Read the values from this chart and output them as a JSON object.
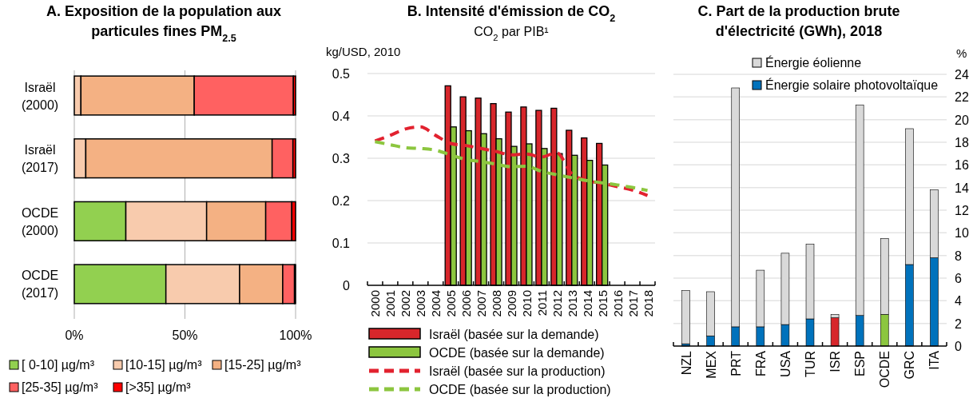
{
  "chart_data": [
    {
      "type": "bar",
      "title": "A. Exposition de la population aux particules fines PM$_{2.5}$",
      "orientation": "horizontal",
      "stacked": true,
      "categories": [
        "Israël (2000)",
        "Israël (2017)",
        "OCDE (2000)",
        "OCDE (2017)"
      ],
      "xlim": [
        0,
        100
      ],
      "xticks": [
        {
          "value": 0,
          "label": "0%"
        },
        {
          "value": 50,
          "label": "50%"
        },
        {
          "value": 100,
          "label": "100%"
        }
      ],
      "grid": "x",
      "legend": "bottom",
      "series": [
        {
          "name": "[ 0-10] µg/m³",
          "color": "#92d050",
          "values": [
            0,
            0,
            23.3,
            41.4
          ]
        },
        {
          "name": "[10-15] µg/m³",
          "color": "#f8cbad",
          "values": [
            3.0,
            5.2,
            36.5,
            33.3
          ]
        },
        {
          "name": "[15-25] µg/m³",
          "color": "#f4b183",
          "values": [
            51.2,
            84.2,
            26.7,
            19.5
          ]
        },
        {
          "name": "[25-35] µg/m³",
          "color": "#ff6161",
          "values": [
            44.8,
            9.4,
            11.8,
            5.3
          ]
        },
        {
          "name": "[>35] µg/m³",
          "color": "#ff0000",
          "values": [
            1.0,
            1.2,
            1.7,
            0.5
          ]
        }
      ]
    },
    {
      "type": "bar",
      "title": "B. Intensité d'émission de CO$_{2}$",
      "subtitle": "CO$_{2}$ par PIB¹",
      "ylabel": "kg/USD, 2010",
      "categories": [
        "2000",
        "2001",
        "2002",
        "2003",
        "2004",
        "2005",
        "2006",
        "2007",
        "2008",
        "2009",
        "2010",
        "2011",
        "2012",
        "2013",
        "2014",
        "2015",
        "2016",
        "2017",
        "2018"
      ],
      "ylim": [
        0,
        0.5
      ],
      "yticks": [
        {
          "value": 0,
          "label": "0"
        },
        0.1,
        0.2,
        0.3,
        0.4,
        0.5
      ],
      "grid": "y",
      "legend": "bottom",
      "series": [
        {
          "name": "Israël (basée sur la demande)",
          "color": "#d7262b",
          "values": [
            null,
            null,
            null,
            null,
            null,
            0.471,
            0.445,
            0.442,
            0.429,
            0.409,
            0.421,
            0.413,
            0.418,
            0.366,
            0.348,
            0.335,
            null,
            null,
            null
          ]
        },
        {
          "name": "OCDE (basée sur la demande)",
          "color": "#8cc63f",
          "values": [
            null,
            null,
            null,
            null,
            null,
            0.374,
            0.365,
            0.358,
            0.346,
            0.328,
            0.334,
            0.323,
            0.311,
            0.307,
            0.295,
            0.284,
            null,
            null,
            null
          ]
        },
        {
          "name": "Israël (basée sur la production)",
          "type": "line",
          "line_style": "dashed",
          "color": "#e2222f",
          "values": [
            0.341,
            0.354,
            0.369,
            0.374,
            0.354,
            0.335,
            0.33,
            0.323,
            0.316,
            0.308,
            0.31,
            0.303,
            0.313,
            0.263,
            0.247,
            0.241,
            0.233,
            0.225,
            0.212
          ]
        },
        {
          "name": "OCDE (basée sur la production)",
          "type": "line",
          "line_style": "dashed",
          "color": "#8cc63f",
          "values": [
            0.339,
            0.332,
            0.325,
            0.323,
            0.319,
            0.308,
            0.297,
            0.292,
            0.286,
            0.28,
            0.281,
            0.269,
            0.261,
            0.254,
            0.247,
            0.242,
            0.237,
            0.231,
            0.224
          ]
        }
      ]
    },
    {
      "type": "bar",
      "title": "C. Part de la production brute d'électricité (GWh), 2018",
      "ylabel": "%",
      "stacked": true,
      "categories": [
        "NZL",
        "MEX",
        "PRT",
        "FRA",
        "USA",
        "TUR",
        "ISR",
        "ESP",
        "OCDE",
        "GRC",
        "ITA"
      ],
      "ylim": [
        0,
        24
      ],
      "yticks": [
        0,
        2,
        4,
        6,
        8,
        10,
        12,
        14,
        16,
        18,
        20,
        22,
        24
      ],
      "grid": "y",
      "legend": "top right",
      "series": [
        {
          "name": "Énergie solaire photovoltaïque",
          "color": "#0072bc",
          "colors": [
            "#0072bc",
            "#0072bc",
            "#0072bc",
            "#0072bc",
            "#0072bc",
            "#0072bc",
            "#d7262b",
            "#0072bc",
            "#8cc63f",
            "#0072bc",
            "#0072bc"
          ],
          "values": [
            0.2,
            0.9,
            1.7,
            1.7,
            1.9,
            2.4,
            2.5,
            2.7,
            2.8,
            7.2,
            7.8
          ]
        },
        {
          "name": "Énergie éolienne",
          "color": "#d9d9d9",
          "values": [
            4.7,
            3.9,
            21.1,
            5.0,
            6.3,
            6.6,
            0.3,
            18.6,
            6.7,
            12.0,
            6.0
          ]
        }
      ]
    }
  ]
}
